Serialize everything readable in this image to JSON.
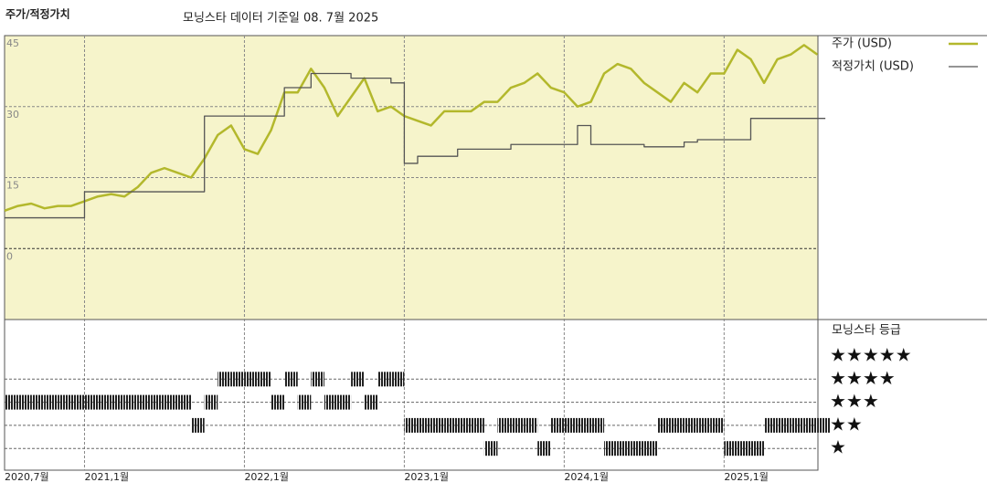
{
  "chart_data": [
    {
      "type": "line",
      "title": "주가/적정가치",
      "subtitle": "모닝스타 데이터 기준일 08. 7월 2025",
      "x": [
        "2020-07",
        "2020-08",
        "2020-09",
        "2020-10",
        "2020-11",
        "2020-12",
        "2021-01",
        "2021-02",
        "2021-03",
        "2021-04",
        "2021-05",
        "2021-06",
        "2021-07",
        "2021-08",
        "2021-09",
        "2021-10",
        "2021-11",
        "2021-12",
        "2022-01",
        "2022-02",
        "2022-03",
        "2022-04",
        "2022-05",
        "2022-06",
        "2022-07",
        "2022-08",
        "2022-09",
        "2022-10",
        "2022-11",
        "2022-12",
        "2023-01",
        "2023-02",
        "2023-03",
        "2023-04",
        "2023-05",
        "2023-06",
        "2023-07",
        "2023-08",
        "2023-09",
        "2023-10",
        "2023-11",
        "2023-12",
        "2024-01",
        "2024-02",
        "2024-03",
        "2024-04",
        "2024-05",
        "2024-06",
        "2024-07",
        "2024-08",
        "2024-09",
        "2024-10",
        "2024-11",
        "2024-12",
        "2025-01",
        "2025-02",
        "2025-03",
        "2025-04",
        "2025-05",
        "2025-06",
        "2025-07",
        "2025-08"
      ],
      "xticks": [
        {
          "value": "2020-07",
          "label": "2020,7월"
        },
        {
          "value": "2021-01",
          "label": "2021,1월"
        },
        {
          "value": "2022-01",
          "label": "2022,1월"
        },
        {
          "value": "2023-01",
          "label": "2023,1월"
        },
        {
          "value": "2024-01",
          "label": "2024,1월"
        },
        {
          "value": "2025-01",
          "label": "2025,1월"
        }
      ],
      "ylim": [
        -15,
        45
      ],
      "yticks": [
        0,
        15,
        30,
        45
      ],
      "grid": true,
      "series": [
        {
          "name": "주가 (USD)",
          "color": "#b3b82c",
          "values": [
            8,
            9,
            9.5,
            8.5,
            9,
            9,
            10,
            11,
            11.5,
            11,
            13,
            16,
            17,
            16,
            15,
            19,
            24,
            26,
            21,
            20,
            25,
            33,
            33,
            38,
            34,
            28,
            32,
            36,
            29,
            30,
            28,
            27,
            26,
            29,
            29,
            29,
            31,
            31,
            34,
            35,
            37,
            34,
            33,
            30,
            31,
            37,
            39,
            38,
            35,
            33,
            31,
            35,
            33,
            37,
            37,
            42,
            40,
            35,
            40,
            41,
            43,
            41
          ]
        },
        {
          "name": "적정가치 (USD)",
          "color": "#555555",
          "step": true,
          "values": [
            6.5,
            6.5,
            6.5,
            6.5,
            6.5,
            6.5,
            12,
            12,
            12,
            12,
            12,
            12,
            12,
            12,
            12,
            28,
            28,
            28,
            28,
            28,
            28,
            34,
            34,
            37,
            37,
            37,
            36,
            36,
            36,
            35,
            18,
            19.5,
            19.5,
            19.5,
            21,
            21,
            21,
            21,
            22,
            22,
            22,
            22,
            22,
            26,
            22,
            22,
            22,
            22,
            21.5,
            21.5,
            21.5,
            22.5,
            23,
            23,
            23,
            23,
            27.5,
            27.5,
            27.5,
            27.5,
            27.5,
            27.5
          ]
        }
      ]
    },
    {
      "type": "strip",
      "title": "모닝스타 등급",
      "levels": [
        {
          "value": 5,
          "label": "★★★★★"
        },
        {
          "value": 4,
          "label": "★★★★"
        },
        {
          "value": 3,
          "label": "★★★"
        },
        {
          "value": 2,
          "label": "★★"
        },
        {
          "value": 1,
          "label": "★"
        }
      ],
      "color": "#333333",
      "values": [
        3,
        3,
        3,
        3,
        3,
        3,
        3,
        3,
        3,
        3,
        3,
        3,
        3,
        3,
        2,
        3,
        4,
        4,
        4,
        4,
        3,
        4,
        3,
        4,
        3,
        3,
        4,
        3,
        4,
        4,
        2,
        2,
        2,
        2,
        2,
        2,
        1,
        2,
        2,
        2,
        1,
        2,
        2,
        2,
        2,
        1,
        1,
        1,
        1,
        2,
        2,
        2,
        2,
        2,
        1,
        1,
        1,
        2,
        2,
        2,
        2,
        2
      ]
    }
  ]
}
